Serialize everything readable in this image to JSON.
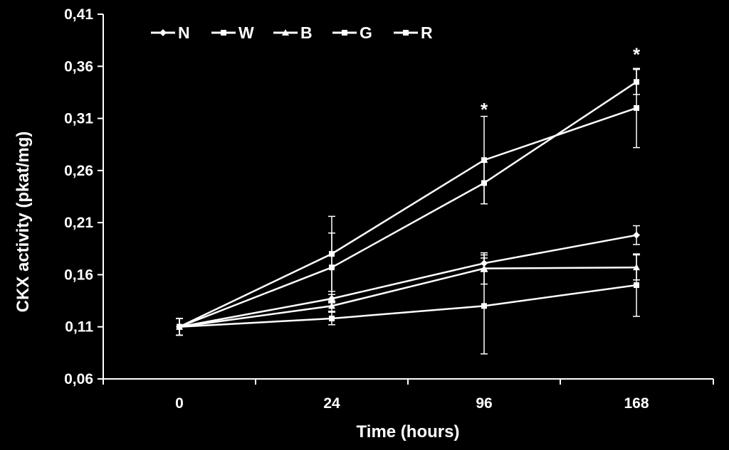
{
  "chart_data": {
    "type": "line",
    "xlabel": "Time (hours)",
    "ylabel": "CKX activity (pkat/mg)",
    "categories": [
      "0",
      "24",
      "96",
      "168"
    ],
    "y_ticks": [
      "0,06",
      "0,11",
      "0,16",
      "0,21",
      "0,26",
      "0,31",
      "0,36",
      "0,41"
    ],
    "ylim": [
      0.06,
      0.41
    ],
    "grid": false,
    "legend_position": "top-left",
    "series": [
      {
        "name": "N",
        "marker": "diamond",
        "values": [
          0.11,
          0.137,
          0.171,
          0.198
        ],
        "errors": [
          0.008,
          0.004,
          0.008,
          0.009
        ]
      },
      {
        "name": "W",
        "marker": "square",
        "values": [
          0.11,
          0.118,
          0.13,
          0.15
        ],
        "errors": [
          0.008,
          0.006,
          0.046,
          0.03
        ]
      },
      {
        "name": "B",
        "marker": "triangle",
        "values": [
          0.11,
          0.13,
          0.166,
          0.167
        ],
        "errors": [
          0.008,
          0.005,
          0.015,
          0.012
        ]
      },
      {
        "name": "G",
        "marker": "square",
        "values": [
          0.11,
          0.18,
          0.27,
          0.32
        ],
        "errors": [
          0.008,
          0.036,
          0.042,
          0.038
        ]
      },
      {
        "name": "R",
        "marker": "square",
        "values": [
          0.11,
          0.167,
          0.248,
          0.345
        ],
        "errors": [
          0.008,
          0.033,
          0.02,
          0.012
        ]
      }
    ],
    "annotations": [
      {
        "text": "*",
        "category": "96",
        "y": 0.322
      },
      {
        "text": "*",
        "category": "168",
        "y": 0.375
      }
    ]
  }
}
